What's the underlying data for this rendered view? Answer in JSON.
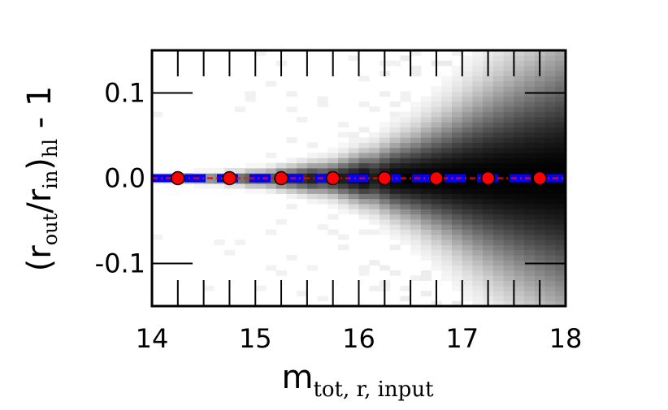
{
  "chart_data": {
    "type": "scatter",
    "xlabel": {
      "main": "m",
      "sub": "tot, r, input"
    },
    "ylabel": {
      "open": "(r",
      "sub1": "out",
      "mid": "/r",
      "sub2": "in",
      "close": ")",
      "sub3": "hl",
      "tail": " - 1"
    },
    "xlim": [
      14,
      18
    ],
    "ylim": [
      -0.15,
      0.15
    ],
    "x_ticks": [
      14,
      15,
      16,
      17,
      18
    ],
    "x_tick_labels": [
      "14",
      "15",
      "16",
      "17",
      "18"
    ],
    "y_ticks": [
      -0.1,
      0.0,
      0.1
    ],
    "y_tick_labels": [
      "-0.1",
      "0.0",
      "0.1"
    ],
    "grid": false,
    "series": [
      {
        "style": "markers-dashdot",
        "color": "#ff0000",
        "x": [
          14.25,
          14.75,
          15.25,
          15.75,
          16.25,
          16.75,
          17.25,
          17.75
        ],
        "y": [
          0.0,
          0.0,
          0.0,
          0.0,
          0.0,
          0.0,
          0.0,
          0.0
        ]
      },
      {
        "style": "dashed",
        "color": "#0000ff",
        "x": [
          14.25,
          14.75,
          15.25,
          15.75,
          16.25,
          16.75,
          17.25,
          17.75,
          18.0
        ],
        "y": [
          0.0,
          0.0,
          0.0,
          0.0,
          0.0,
          0.0,
          0.0,
          0.0,
          0.0
        ]
      }
    ],
    "density": {
      "description_free": true,
      "x_bins": [
        14.0,
        14.1,
        14.2,
        14.3,
        14.4,
        14.5,
        14.6,
        14.7,
        14.8,
        14.9,
        15.0,
        15.1,
        15.2,
        15.3,
        15.4,
        15.5,
        15.6,
        15.7,
        15.8,
        15.9,
        16.0,
        16.1,
        16.2,
        16.3,
        16.4,
        16.5,
        16.6,
        16.7,
        16.8,
        16.9,
        17.0,
        17.1,
        17.2,
        17.3,
        17.4,
        17.5,
        17.6,
        17.7,
        17.8,
        17.9
      ],
      "center_intensity": [
        0.35,
        0.45,
        0.5,
        0.55,
        0.5,
        0.55,
        0.6,
        0.6,
        0.65,
        0.7,
        0.75,
        0.7,
        0.8,
        0.8,
        0.85,
        0.9,
        0.8,
        0.85,
        0.9,
        0.95,
        1.0,
        0.9,
        0.95,
        1.0,
        1.0,
        1.0,
        1.0,
        1.0,
        1.0,
        1.0,
        1.0,
        1.0,
        1.0,
        1.0,
        1.0,
        1.0,
        1.0,
        1.0,
        1.0,
        1.0
      ],
      "spread": [
        0.002,
        0.002,
        0.003,
        0.003,
        0.004,
        0.004,
        0.004,
        0.005,
        0.005,
        0.006,
        0.006,
        0.007,
        0.008,
        0.009,
        0.01,
        0.011,
        0.012,
        0.013,
        0.015,
        0.017,
        0.019,
        0.021,
        0.024,
        0.027,
        0.03,
        0.033,
        0.037,
        0.041,
        0.045,
        0.05,
        0.055,
        0.06,
        0.065,
        0.07,
        0.075,
        0.08,
        0.085,
        0.09,
        0.095,
        0.1
      ]
    }
  }
}
